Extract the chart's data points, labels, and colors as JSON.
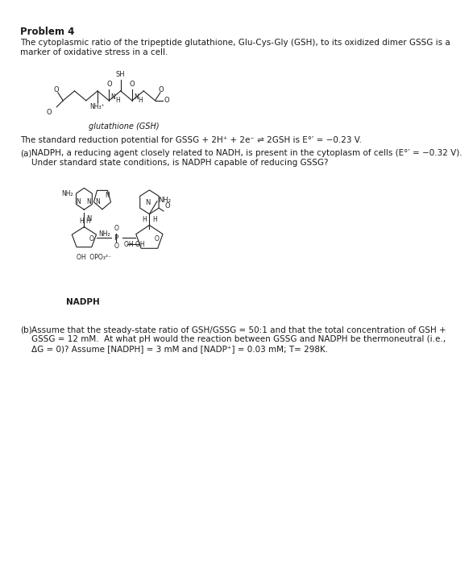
{
  "title": "Problem 4",
  "intro_line1": "The cytoplasmic ratio of the tripeptide glutathione, Glu-Cys-Gly (GSH), to its oxidized dimer GSSG is a",
  "intro_line2": "marker of oxidative stress in a cell.",
  "gsh_label": "glutathione (GSH)",
  "standard_text": "The standard reduction potential for GSSG + 2H⁺ + 2e⁻ ⇌ 2GSH is E°′ = −0.23 V.",
  "part_a_label": "(a)",
  "part_a_line1": "NADPH, a reducing agent closely related to NADH, is present in the cytoplasm of cells (E°′ = −0.32 V).",
  "part_a_line2": "Under standard state conditions, is NADPH capable of reducing GSSG?",
  "nadph_label": "NADPH",
  "part_b_label": "(b)",
  "part_b_line1": "Assume that the steady-state ratio of GSH/GSSG = 50:1 and that the total concentration of GSH +",
  "part_b_line2": "GSSG = 12 mM.  At what pH would the reaction between GSSG and NADPH be thermoneutral (i.e.,",
  "part_b_line3": "ΔG = 0)? Assume [NADPH] = 3 mM and [NADP⁺] = 0.03 mM; T= 298K.",
  "bg_color": "#ffffff",
  "text_color": "#1a1a1a",
  "font_size": 7.5,
  "title_font_size": 8.5
}
